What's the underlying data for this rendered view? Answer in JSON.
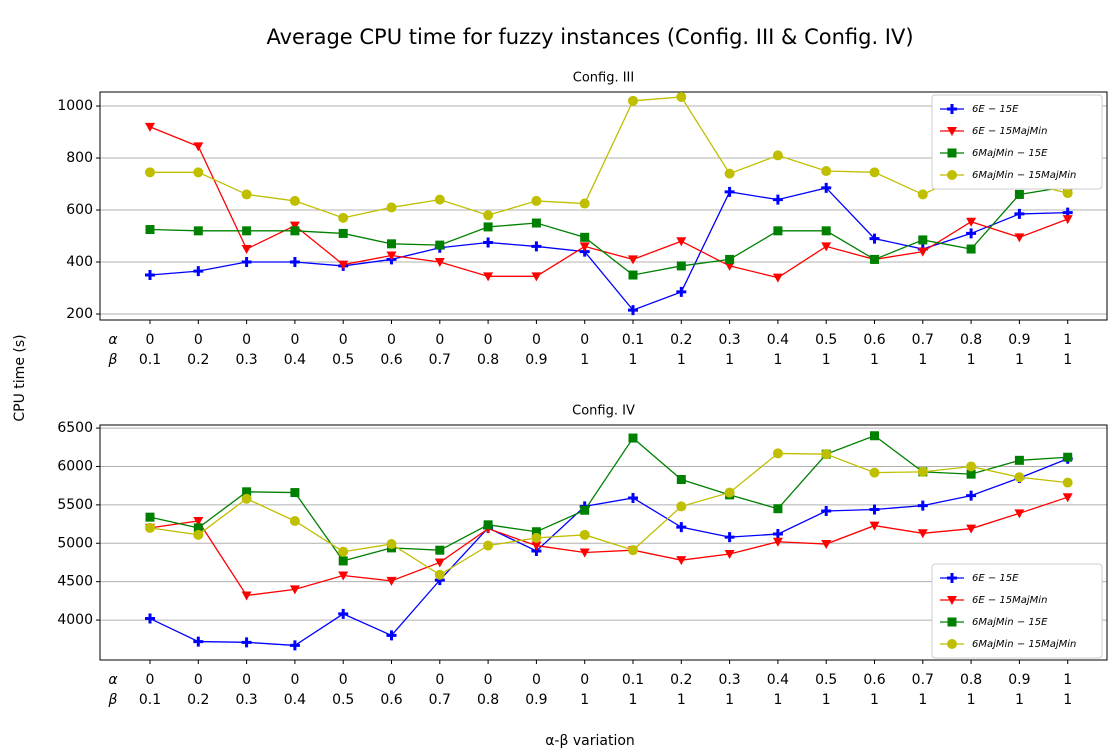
{
  "title": "Average CPU time for fuzzy instances (Config. III & Config. IV)",
  "xlabel": "α-β variation",
  "ylabel": "CPU time (s)",
  "chart_data": [
    {
      "type": "line",
      "title": "Config. III",
      "legend": "upper right",
      "grid": true,
      "category_rows": [
        {
          "label": "α",
          "values": [
            0,
            0,
            0,
            0,
            0,
            0,
            0,
            0,
            0,
            0,
            0.1,
            0.2,
            0.3,
            0.4,
            0.5,
            0.6,
            0.7,
            0.8,
            0.9,
            1
          ]
        },
        {
          "label": "β",
          "values": [
            0.1,
            0.2,
            0.3,
            0.4,
            0.5,
            0.6,
            0.7,
            0.8,
            0.9,
            1,
            1,
            1,
            1,
            1,
            1,
            1,
            1,
            1,
            1,
            1
          ]
        }
      ],
      "ylim": [
        177,
        1054
      ],
      "yticks": [
        200,
        400,
        600,
        800,
        1000
      ],
      "series": [
        {
          "name": "6E − 15E",
          "color": "#0000ff",
          "marker": "plus",
          "values": [
            350,
            365,
            400,
            400,
            385,
            410,
            455,
            475,
            460,
            440,
            215,
            285,
            670,
            640,
            685,
            490,
            450,
            510,
            585,
            590
          ]
        },
        {
          "name": "6E − 15MajMin",
          "color": "#ff0000",
          "marker": "triangle",
          "values": [
            920,
            845,
            450,
            540,
            390,
            425,
            400,
            345,
            345,
            460,
            410,
            480,
            385,
            340,
            460,
            410,
            440,
            555,
            495,
            565
          ]
        },
        {
          "name": "6MajMin − 15E",
          "color": "#008000",
          "marker": "square",
          "values": [
            525,
            520,
            520,
            520,
            510,
            470,
            465,
            535,
            550,
            495,
            350,
            385,
            410,
            520,
            520,
            410,
            485,
            450,
            660,
            690
          ]
        },
        {
          "name": "6MajMin − 15MajMin",
          "color": "#bfbf00",
          "marker": "circle",
          "values": [
            745,
            745,
            660,
            635,
            570,
            610,
            640,
            580,
            635,
            625,
            1020,
            1035,
            740,
            810,
            750,
            745,
            660,
            745,
            710,
            665
          ]
        }
      ]
    },
    {
      "type": "line",
      "title": "Config. IV",
      "legend": "lower right",
      "grid": true,
      "category_rows": [
        {
          "label": "α",
          "values": [
            0,
            0,
            0,
            0,
            0,
            0,
            0,
            0,
            0,
            0,
            0.1,
            0.2,
            0.3,
            0.4,
            0.5,
            0.6,
            0.7,
            0.8,
            0.9,
            1
          ]
        },
        {
          "label": "β",
          "values": [
            0.1,
            0.2,
            0.3,
            0.4,
            0.5,
            0.6,
            0.7,
            0.8,
            0.9,
            1,
            1,
            1,
            1,
            1,
            1,
            1,
            1,
            1,
            1,
            1
          ]
        }
      ],
      "ylim": [
        3480,
        6540
      ],
      "yticks": [
        4000,
        4500,
        5000,
        5500,
        6000,
        6500
      ],
      "series": [
        {
          "name": "6E − 15E",
          "color": "#0000ff",
          "marker": "plus",
          "values": [
            4020,
            3720,
            3710,
            3670,
            4080,
            3800,
            4520,
            5200,
            4900,
            5480,
            5590,
            5210,
            5080,
            5120,
            5420,
            5440,
            5490,
            5620,
            5850,
            6100
          ]
        },
        {
          "name": "6E − 15MajMin",
          "color": "#ff0000",
          "marker": "triangle",
          "values": [
            5200,
            5290,
            4320,
            4400,
            4580,
            4510,
            4750,
            5190,
            4970,
            4880,
            4910,
            4780,
            4860,
            5020,
            4990,
            5230,
            5130,
            5190,
            5390,
            5600
          ]
        },
        {
          "name": "6MajMin − 15E",
          "color": "#008000",
          "marker": "square",
          "values": [
            5340,
            5200,
            5670,
            5660,
            4770,
            4940,
            4910,
            5240,
            5150,
            5430,
            6370,
            5830,
            5630,
            5450,
            6160,
            6400,
            5930,
            5900,
            6080,
            6120
          ]
        },
        {
          "name": "6MajMin − 15MajMin",
          "color": "#bfbf00",
          "marker": "circle",
          "values": [
            5200,
            5110,
            5580,
            5290,
            4890,
            4990,
            4590,
            4970,
            5070,
            5110,
            4910,
            5480,
            5660,
            6170,
            6160,
            5920,
            5930,
            6000,
            5860,
            5790
          ]
        }
      ]
    }
  ]
}
